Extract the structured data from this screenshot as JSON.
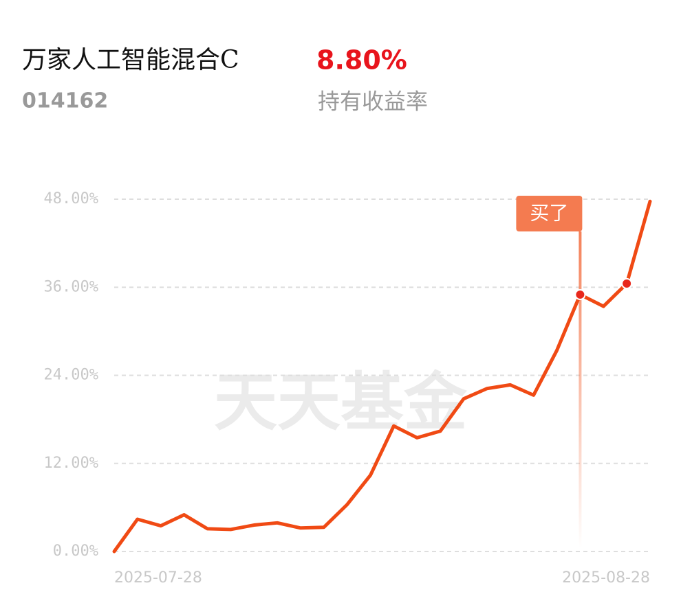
{
  "chart_data": {
    "type": "line",
    "title": "万家人工智能混合C",
    "code": "014162",
    "return_value": "8.80%",
    "return_label": "持有收益率",
    "watermark": "天天基金",
    "categories": [
      "2025-07-28",
      null,
      null,
      null,
      null,
      null,
      null,
      null,
      null,
      null,
      null,
      null,
      null,
      null,
      null,
      null,
      null,
      null,
      null,
      null,
      null,
      null,
      null,
      "2025-08-28"
    ],
    "series": [
      {
        "color": "#f04a14",
        "values": [
          0,
          4.4,
          3.5,
          5.0,
          3.1,
          3.0,
          3.6,
          3.9,
          3.2,
          3.3,
          6.4,
          10.4,
          17.1,
          15.5,
          16.4,
          20.8,
          22.2,
          22.7,
          21.3,
          27.4,
          35.0,
          33.4,
          36.5,
          47.7
        ]
      }
    ],
    "ylim": [
      0,
      48
    ],
    "yticks": [
      {
        "value": 0,
        "label": "0.00%"
      },
      {
        "value": 12,
        "label": "12.00%"
      },
      {
        "value": 24,
        "label": "24.00%"
      },
      {
        "value": 36,
        "label": "36.00%"
      },
      {
        "value": 48,
        "label": "48.00%"
      }
    ],
    "grid": true,
    "annotation": {
      "text": "买了",
      "index": 20
    },
    "markers": [
      20,
      22
    ]
  }
}
